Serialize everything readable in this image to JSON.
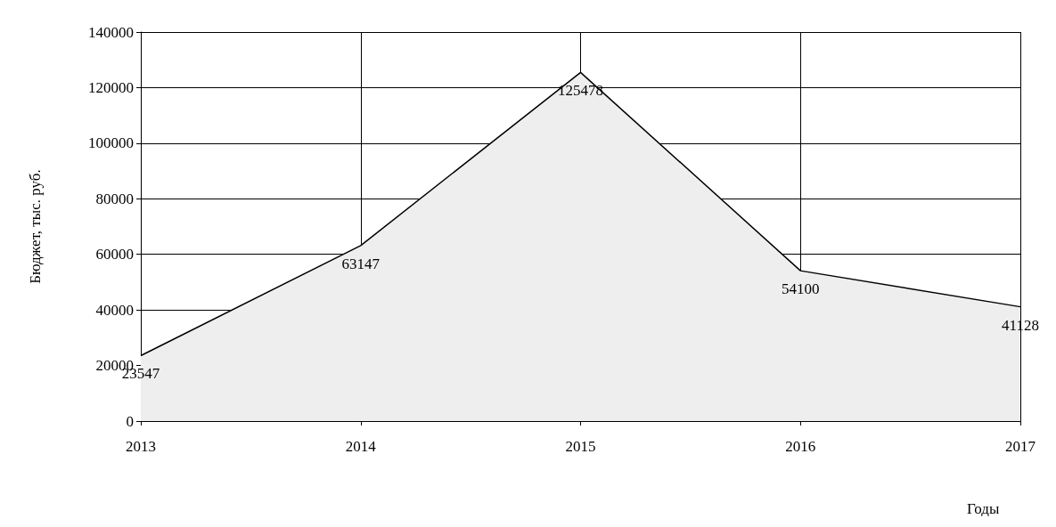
{
  "chart_data": {
    "type": "area",
    "xlabel": "Годы",
    "ylabel": "Бюджет, тыс. руб.",
    "categories": [
      "2013",
      "2014",
      "2015",
      "2016",
      "2017"
    ],
    "series": [
      {
        "color": "#000000",
        "values": [
          23547,
          63147,
          125478,
          54100,
          41128
        ]
      }
    ],
    "ylim": [
      0,
      140000
    ],
    "yticks": [
      0,
      20000,
      40000,
      60000,
      80000,
      100000,
      120000,
      140000
    ],
    "grid": true,
    "data_labels": true,
    "marker": "none"
  }
}
